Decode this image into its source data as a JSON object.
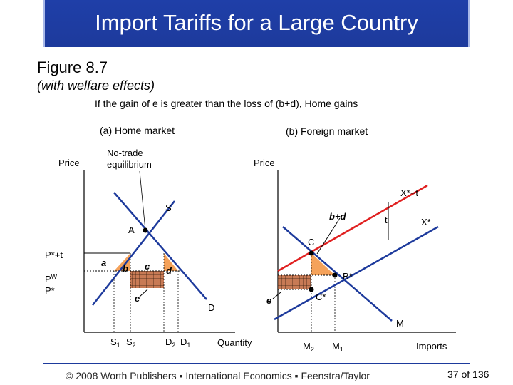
{
  "title": "Import Tariffs for a Large Country",
  "figure_label": "Figure 8.7",
  "figure_subtitle": "(with welfare effects)",
  "note": "If the gain of e is greater than the loss of (b+d), Home gains",
  "panel_a": {
    "heading": "(a) Home market",
    "price_label": "Price",
    "no_trade_label_1": "No-trade",
    "no_trade_label_2": "equilibrium",
    "supply_label": "S",
    "demand_label": "D",
    "point_a_label": "A",
    "price_tariff_label": "P*+t",
    "price_world_label": "P",
    "price_world_sup": "W",
    "price_foreign_label": "P*",
    "area_a": "a",
    "area_b": "b",
    "area_c": "c",
    "area_d": "d",
    "area_e": "e",
    "x_s1": "S",
    "x_s1_sub": "1",
    "x_s2": "S",
    "x_s2_sub": "2",
    "x_d2": "D",
    "x_d2_sub": "2",
    "x_d1": "D",
    "x_d1_sub": "1",
    "quantity_label": "Quantity"
  },
  "panel_b": {
    "heading": "(b) Foreign market",
    "price_label": "Price",
    "xt_label": "X*+t",
    "x_label": "X*",
    "t_label": "t",
    "bd_label": "b+d",
    "point_c_label": "C",
    "point_bstar_label": "B*",
    "point_cstar_label": "C*",
    "area_e": "e",
    "m_label": "M",
    "x_m2": "M",
    "x_m2_sub": "2",
    "x_m1": "M",
    "x_m1_sub": "1",
    "imports_label": "Imports"
  },
  "footer": "© 2008 Worth Publishers ▪ International Economics ▪ Feenstra/Taylor",
  "page_number": "37 of 136",
  "colors": {
    "title_bar": "#1d3a9c",
    "curve": "#1d3a9c",
    "tariff_line": "#e02020",
    "triangle_fill": "#f5a25a",
    "rect_fill": "#c87a55"
  }
}
